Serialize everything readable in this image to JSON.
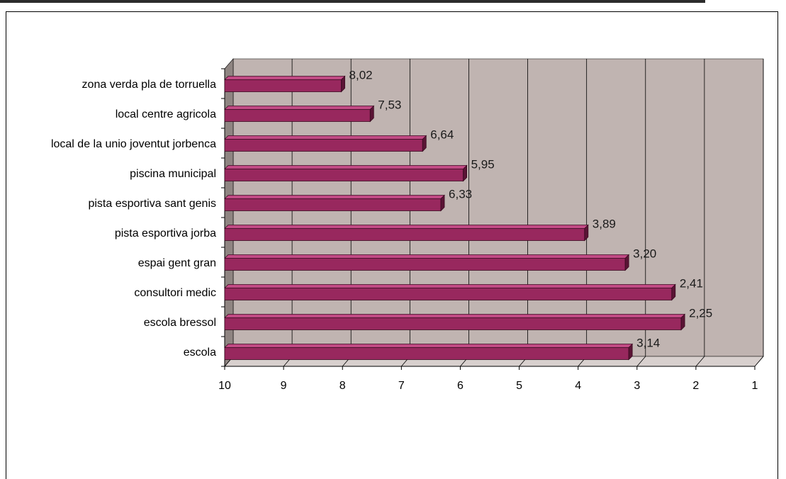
{
  "chart_data": {
    "type": "bar",
    "orientation": "horizontal",
    "reversed_x_axis": true,
    "categories": [
      "zona verda pla de torruella",
      "local centre agricola",
      "local de la unio joventut jorbenca",
      "piscina municipal",
      "pista esportiva sant genis",
      "pista esportiva jorba",
      "espai gent gran",
      "consultori medic",
      "escola bressol",
      "escola"
    ],
    "values": [
      8.02,
      7.53,
      6.64,
      5.95,
      6.33,
      3.89,
      3.2,
      2.41,
      2.25,
      3.14
    ],
    "value_labels": [
      "8,02",
      "7,53",
      "6,64",
      "5,95",
      "6,33",
      "3,89",
      "3,20",
      "2,41",
      "2,25",
      "3,14"
    ],
    "x_ticks": [
      "10",
      "9",
      "8",
      "7",
      "6",
      "5",
      "4",
      "3",
      "2",
      "1"
    ],
    "xlim": [
      10,
      1
    ],
    "grid": true,
    "legend": "none",
    "colors": {
      "bar_front": "#98285e",
      "bar_top": "#c14a84",
      "bar_side": "#5a1435",
      "plot_back": "#c0b4b1",
      "plot_wall": "#8f8582",
      "plot_floor": "#d8d0ce",
      "grid": "#000000"
    }
  }
}
